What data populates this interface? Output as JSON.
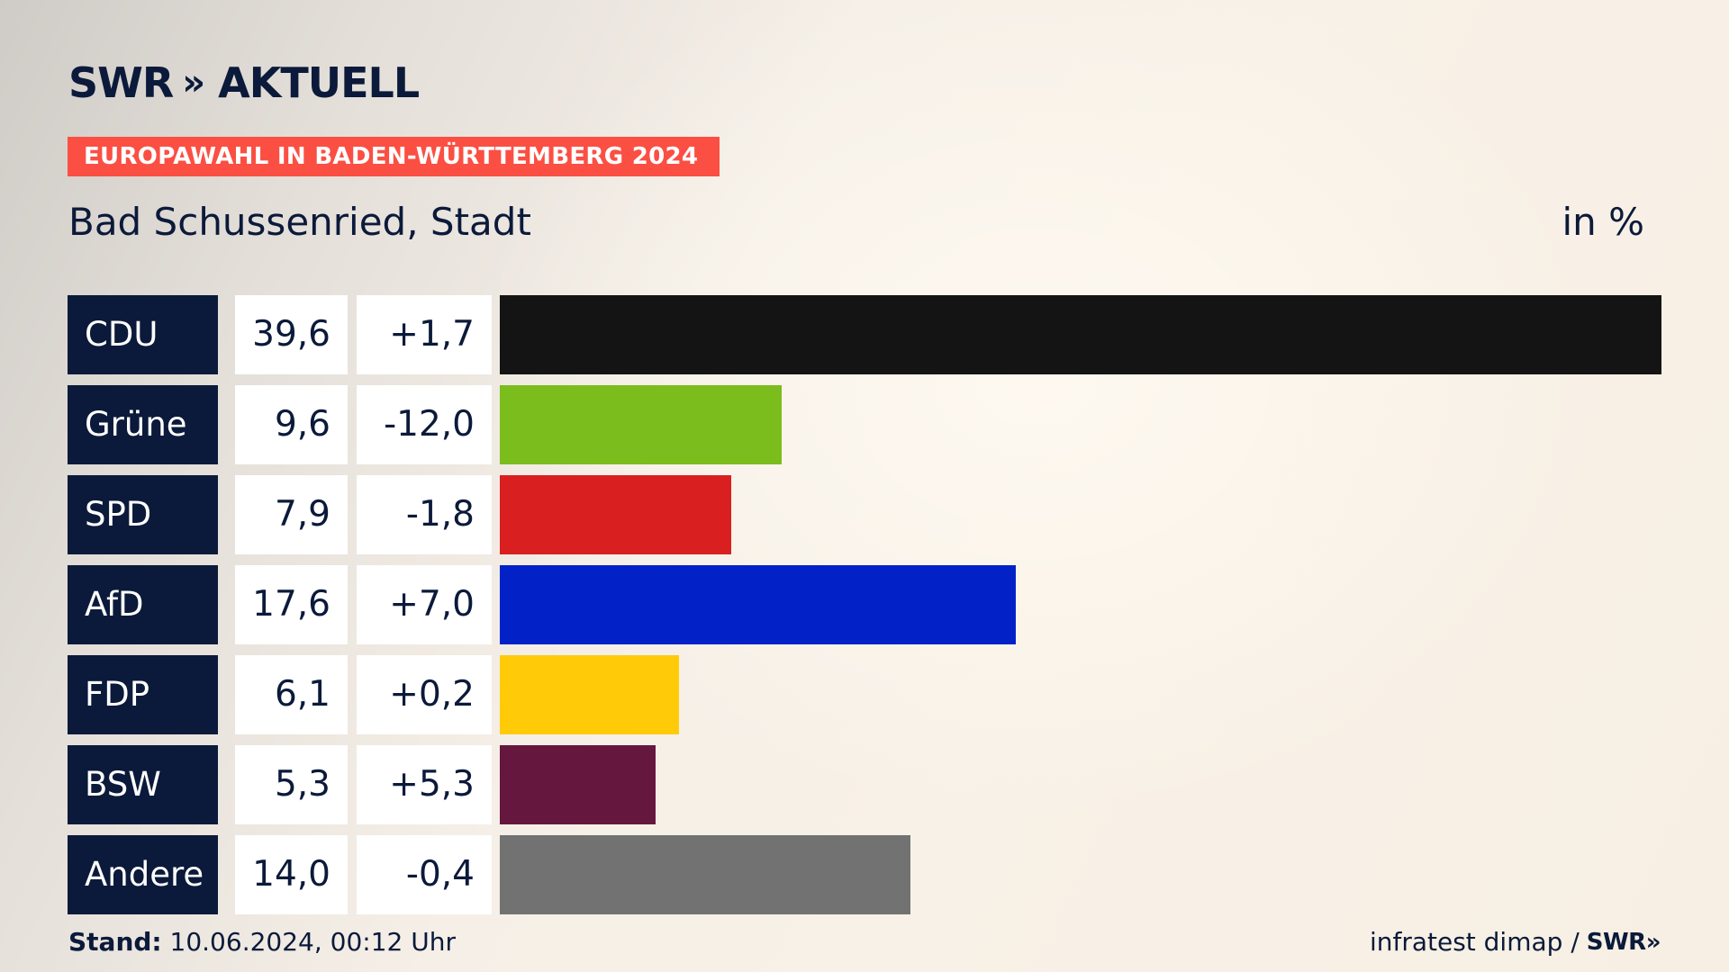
{
  "header": {
    "logo_text": "SWR",
    "logo_chevrons": "»",
    "logo_suffix": "AKTUELL",
    "badge": "EUROPAWAHL IN BADEN-WÜRTTEMBERG 2024",
    "place": "Bad Schussenried, Stadt",
    "unit": "in %"
  },
  "chart_data": {
    "type": "bar",
    "orientation": "horizontal",
    "title": "Bad Schussenried, Stadt",
    "unit": "in %",
    "categories": [
      "CDU",
      "Grüne",
      "SPD",
      "AfD",
      "FDP",
      "BSW",
      "Andere"
    ],
    "values": [
      39.6,
      9.6,
      7.9,
      17.6,
      6.1,
      5.3,
      14.0
    ],
    "value_labels": [
      "39,6",
      "9,6",
      "7,9",
      "17,6",
      "6,1",
      "5,3",
      "14,0"
    ],
    "differences": [
      1.7,
      -12.0,
      -1.8,
      7.0,
      0.2,
      5.3,
      -0.4
    ],
    "difference_labels": [
      "+1,7",
      "-12,0",
      "-1,8",
      "+7,0",
      "+0,2",
      "+5,3",
      "-0,4"
    ],
    "colors": [
      "#141414",
      "#7abd1c",
      "#d91f1f",
      "#0222c8",
      "#ffcb08",
      "#66173d",
      "#727272"
    ],
    "xlim": [
      0,
      39.6
    ],
    "grid": false,
    "legend": "none"
  },
  "footer": {
    "stand_label": "Stand:",
    "stand_value": "10.06.2024, 00:12 Uhr",
    "source": "infratest dimap /",
    "source_logo": "SWR",
    "source_logo_chevrons": "»"
  }
}
